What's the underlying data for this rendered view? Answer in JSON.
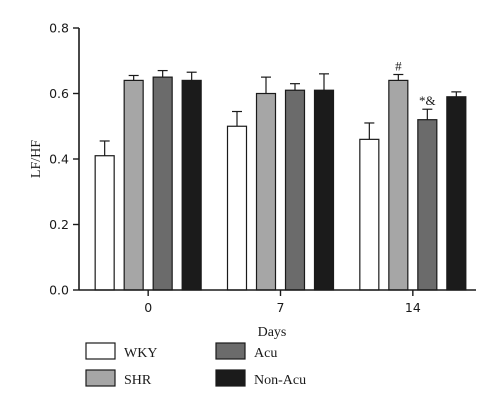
{
  "chart_data": {
    "type": "bar",
    "title": "",
    "xlabel": "Days",
    "ylabel": "LF/HF",
    "ylim": [
      0,
      0.8
    ],
    "yticks": [
      "0.0",
      "0.2",
      "0.4",
      "0.6",
      "0.8"
    ],
    "categories": [
      "0",
      "7",
      "14"
    ],
    "grid": false,
    "legend_position": "bottom",
    "series": [
      {
        "name": "WKY",
        "color": "#ffffff",
        "values": [
          0.41,
          0.5,
          0.46
        ],
        "errors": [
          0.045,
          0.045,
          0.05
        ]
      },
      {
        "name": "SHR",
        "color": "#a6a6a6",
        "values": [
          0.64,
          0.6,
          0.64
        ],
        "errors": [
          0.015,
          0.05,
          0.018
        ]
      },
      {
        "name": "Acu",
        "color": "#6b6b6b",
        "values": [
          0.65,
          0.61,
          0.52
        ],
        "errors": [
          0.02,
          0.02,
          0.032
        ]
      },
      {
        "name": "Non-Acu",
        "color": "#1b1b1b",
        "values": [
          0.64,
          0.61,
          0.59
        ],
        "errors": [
          0.025,
          0.05,
          0.015
        ]
      }
    ],
    "annotations": [
      {
        "text": "#",
        "category": "14",
        "series": "SHR"
      },
      {
        "text": "*&",
        "category": "14",
        "series": "Acu"
      }
    ]
  }
}
